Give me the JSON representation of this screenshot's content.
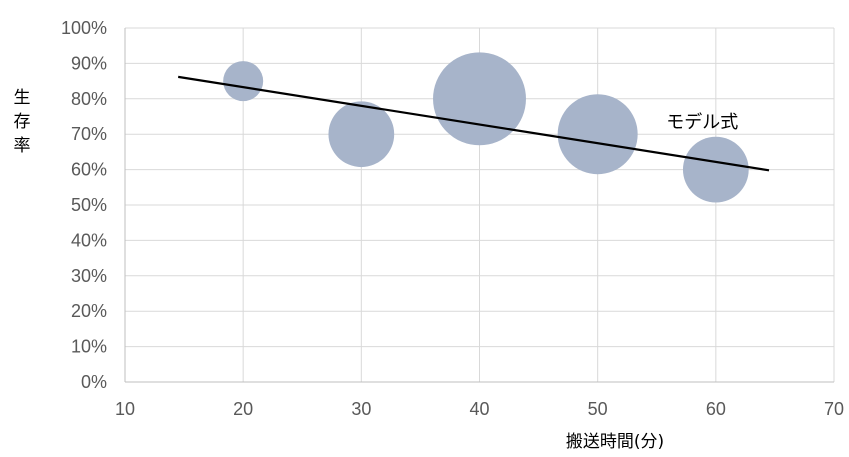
{
  "chart_data": {
    "type": "bubble",
    "title": "",
    "xlabel": "搬送時間(分)",
    "ylabel": "生存率",
    "xlim": [
      10,
      70
    ],
    "ylim": [
      0,
      1
    ],
    "x_ticks": [
      10,
      20,
      30,
      40,
      50,
      60,
      70
    ],
    "x_tick_labels": [
      "10",
      "20",
      "30",
      "40",
      "50",
      "60",
      "70"
    ],
    "y_ticks": [
      0,
      0.1,
      0.2,
      0.3,
      0.4,
      0.5,
      0.6,
      0.7,
      0.8,
      0.9,
      1.0
    ],
    "y_tick_labels": [
      "0%",
      "10%",
      "20%",
      "30%",
      "40%",
      "50%",
      "60%",
      "70%",
      "80%",
      "90%",
      "100%"
    ],
    "grid": true,
    "series": [
      {
        "points": [
          {
            "x": 20,
            "y": 0.85,
            "size": 1.0
          },
          {
            "x": 30,
            "y": 0.7,
            "size": 2.7
          },
          {
            "x": 40,
            "y": 0.8,
            "size": 5.4
          },
          {
            "x": 50,
            "y": 0.7,
            "size": 4.0
          },
          {
            "x": 60,
            "y": 0.6,
            "size": 2.7
          }
        ],
        "color": "#a7b4ca"
      }
    ],
    "trendline": {
      "label": "モデル式",
      "x_start": 14.5,
      "y_start": 0.862,
      "x_end": 64.5,
      "y_end": 0.598,
      "color": "#000000"
    }
  }
}
